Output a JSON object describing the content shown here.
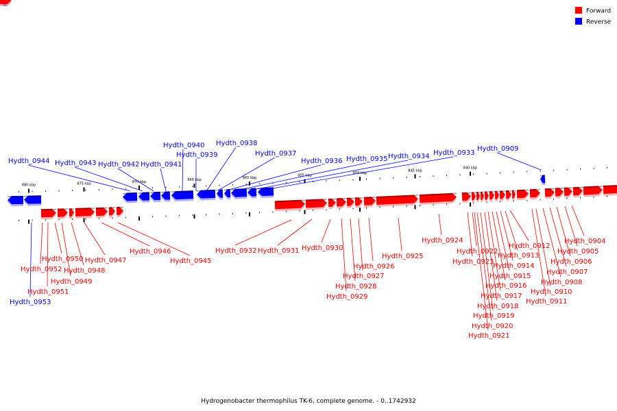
{
  "caption": "Hydrogenobacter thermophilus TK-6, complete genome. - 0..1742932",
  "colors": {
    "forward": "#ff0000",
    "reverse": "#0000ff",
    "backbone": "#888888"
  },
  "legend": [
    {
      "label": "Forward",
      "strand": "forward"
    },
    {
      "label": "Reverse",
      "strand": "reverse"
    }
  ],
  "scale": {
    "unit": "kbp",
    "kbp_labels": [
      {
        "kbp": 880,
        "label": "880 kbp"
      },
      {
        "kbp": 875,
        "label": "875 kbp"
      },
      {
        "kbp": 870,
        "label": "870 kbp"
      },
      {
        "kbp": 865,
        "label": "865 kbp"
      },
      {
        "kbp": 860,
        "label": "860 kbp"
      },
      {
        "kbp": 855,
        "label": "855 kbp"
      },
      {
        "kbp": 850,
        "label": "850 kbp"
      },
      {
        "kbp": 845,
        "label": "845 kbp"
      },
      {
        "kbp": 840,
        "label": "840 kbp"
      }
    ]
  },
  "genes": [
    {
      "id": "Hydth_0944",
      "strand": "reverse"
    },
    {
      "id": "Hydth_0943",
      "strand": "reverse"
    },
    {
      "id": "Hydth_0942",
      "strand": "reverse"
    },
    {
      "id": "Hydth_0941",
      "strand": "reverse"
    },
    {
      "id": "Hydth_0940",
      "strand": "reverse"
    },
    {
      "id": "Hydth_0939",
      "strand": "reverse"
    },
    {
      "id": "Hydth_0938",
      "strand": "reverse"
    },
    {
      "id": "Hydth_0937",
      "strand": "reverse"
    },
    {
      "id": "Hydth_0936",
      "strand": "reverse"
    },
    {
      "id": "Hydth_0935",
      "strand": "reverse"
    },
    {
      "id": "Hydth_0934",
      "strand": "reverse"
    },
    {
      "id": "Hydth_0933",
      "strand": "reverse"
    },
    {
      "id": "Hydth_0909",
      "strand": "reverse"
    },
    {
      "id": "Hydth_0953",
      "strand": "reverse"
    },
    {
      "id": "Hydth_0952",
      "strand": "forward"
    },
    {
      "id": "Hydth_0951",
      "strand": "forward"
    },
    {
      "id": "Hydth_0950",
      "strand": "forward"
    },
    {
      "id": "Hydth_0949",
      "strand": "forward"
    },
    {
      "id": "Hydth_0948",
      "strand": "forward"
    },
    {
      "id": "Hydth_0947",
      "strand": "forward"
    },
    {
      "id": "Hydth_0946",
      "strand": "forward"
    },
    {
      "id": "Hydth_0945",
      "strand": "forward"
    },
    {
      "id": "Hydth_0932",
      "strand": "forward"
    },
    {
      "id": "Hydth_0931",
      "strand": "forward"
    },
    {
      "id": "Hydth_0930",
      "strand": "forward"
    },
    {
      "id": "Hydth_0929",
      "strand": "forward"
    },
    {
      "id": "Hydth_0928",
      "strand": "forward"
    },
    {
      "id": "Hydth_0927",
      "strand": "forward"
    },
    {
      "id": "Hydth_0926",
      "strand": "forward"
    },
    {
      "id": "Hydth_0925",
      "strand": "forward"
    },
    {
      "id": "Hydth_0924",
      "strand": "forward"
    },
    {
      "id": "Hydth_0923",
      "strand": "forward"
    },
    {
      "id": "Hydth_0922",
      "strand": "forward"
    },
    {
      "id": "Hydth_0921",
      "strand": "forward"
    },
    {
      "id": "Hydth_0920",
      "strand": "forward"
    },
    {
      "id": "Hydth_0919",
      "strand": "forward"
    },
    {
      "id": "Hydth_0918",
      "strand": "forward"
    },
    {
      "id": "Hydth_0917",
      "strand": "forward"
    },
    {
      "id": "Hydth_0916",
      "strand": "forward"
    },
    {
      "id": "Hydth_0915",
      "strand": "forward"
    },
    {
      "id": "Hydth_0914",
      "strand": "forward"
    },
    {
      "id": "Hydth_0913",
      "strand": "forward"
    },
    {
      "id": "Hydth_0912",
      "strand": "forward"
    },
    {
      "id": "Hydth_0911",
      "strand": "forward"
    },
    {
      "id": "Hydth_0910",
      "strand": "forward"
    },
    {
      "id": "Hydth_0908",
      "strand": "forward"
    },
    {
      "id": "Hydth_0907",
      "strand": "forward"
    },
    {
      "id": "Hydth_0906",
      "strand": "forward"
    },
    {
      "id": "Hydth_0905",
      "strand": "forward"
    },
    {
      "id": "Hydth_0904",
      "strand": "forward"
    }
  ]
}
